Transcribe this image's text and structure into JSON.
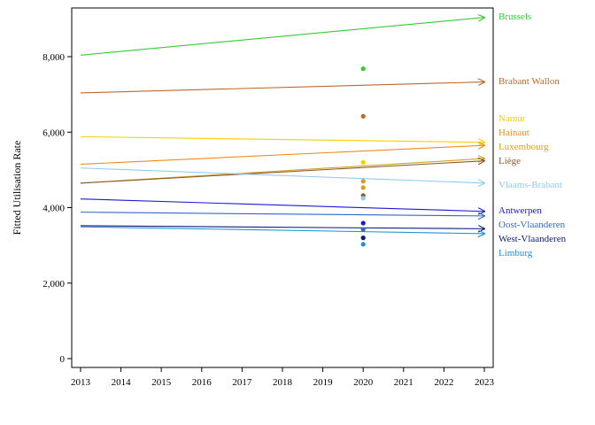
{
  "chart_data": {
    "type": "line",
    "title": "",
    "xlabel": "",
    "ylabel": "Fitted Utilisation Rate",
    "xlim": [
      2013,
      2023
    ],
    "ylim": [
      0,
      9200
    ],
    "xticks": [
      "2013",
      "2014",
      "2015",
      "2016",
      "2017",
      "2018",
      "2019",
      "2020",
      "2021",
      "2022",
      "2023"
    ],
    "yticks": [
      0,
      2000,
      4000,
      6000,
      8000
    ],
    "ytick_labels": [
      "0",
      "2,000",
      "4,000",
      "6,000",
      "8,000"
    ],
    "grid": false,
    "legend": "direct labels at right end of lines",
    "observed_year": 2020,
    "series": [
      {
        "name": "Brussels",
        "color": "#33cc33",
        "start": 8040,
        "end": 9040,
        "observed": 7680
      },
      {
        "name": "Brabant Wallon",
        "color": "#c0682a",
        "start": 7040,
        "end": 7330,
        "observed": 6420
      },
      {
        "name": "Namur",
        "color": "#f5d000",
        "start": 5880,
        "end": 5730,
        "observed": 5200
      },
      {
        "name": "Hainaut",
        "color": "#ef8c1a",
        "start": 5150,
        "end": 5650,
        "observed": 4700
      },
      {
        "name": "Luxembourg",
        "color": "#d4a020",
        "start": 4650,
        "end": 5300,
        "observed": 4530
      },
      {
        "name": "Liège",
        "color": "#8b5a2b",
        "start": 4650,
        "end": 5240,
        "observed": 4320
      },
      {
        "name": "Vlaams-Brabant",
        "color": "#8ecbef",
        "start": 5050,
        "end": 4650,
        "observed": 4250
      },
      {
        "name": "Antwerpen",
        "color": "#1a1ad8",
        "start": 4230,
        "end": 3900,
        "observed": 3590
      },
      {
        "name": "Oost-Vlaanderen",
        "color": "#3366cc",
        "start": 3880,
        "end": 3780,
        "observed": 3420
      },
      {
        "name": "West-Vlaanderen",
        "color": "#0a1a7a",
        "start": 3520,
        "end": 3440,
        "observed": 3200
      },
      {
        "name": "Limburg",
        "color": "#1e90d8",
        "start": 3490,
        "end": 3310,
        "observed": 3030
      }
    ],
    "label_positions_order": [
      "Brussels",
      "Brabant Wallon",
      "Namur",
      "Hainaut",
      "Luxembourg",
      "Liège",
      "Vlaams-Brabant",
      "Antwerpen",
      "Oost-Vlaanderen",
      "West-Vlaanderen",
      "Limburg"
    ]
  }
}
